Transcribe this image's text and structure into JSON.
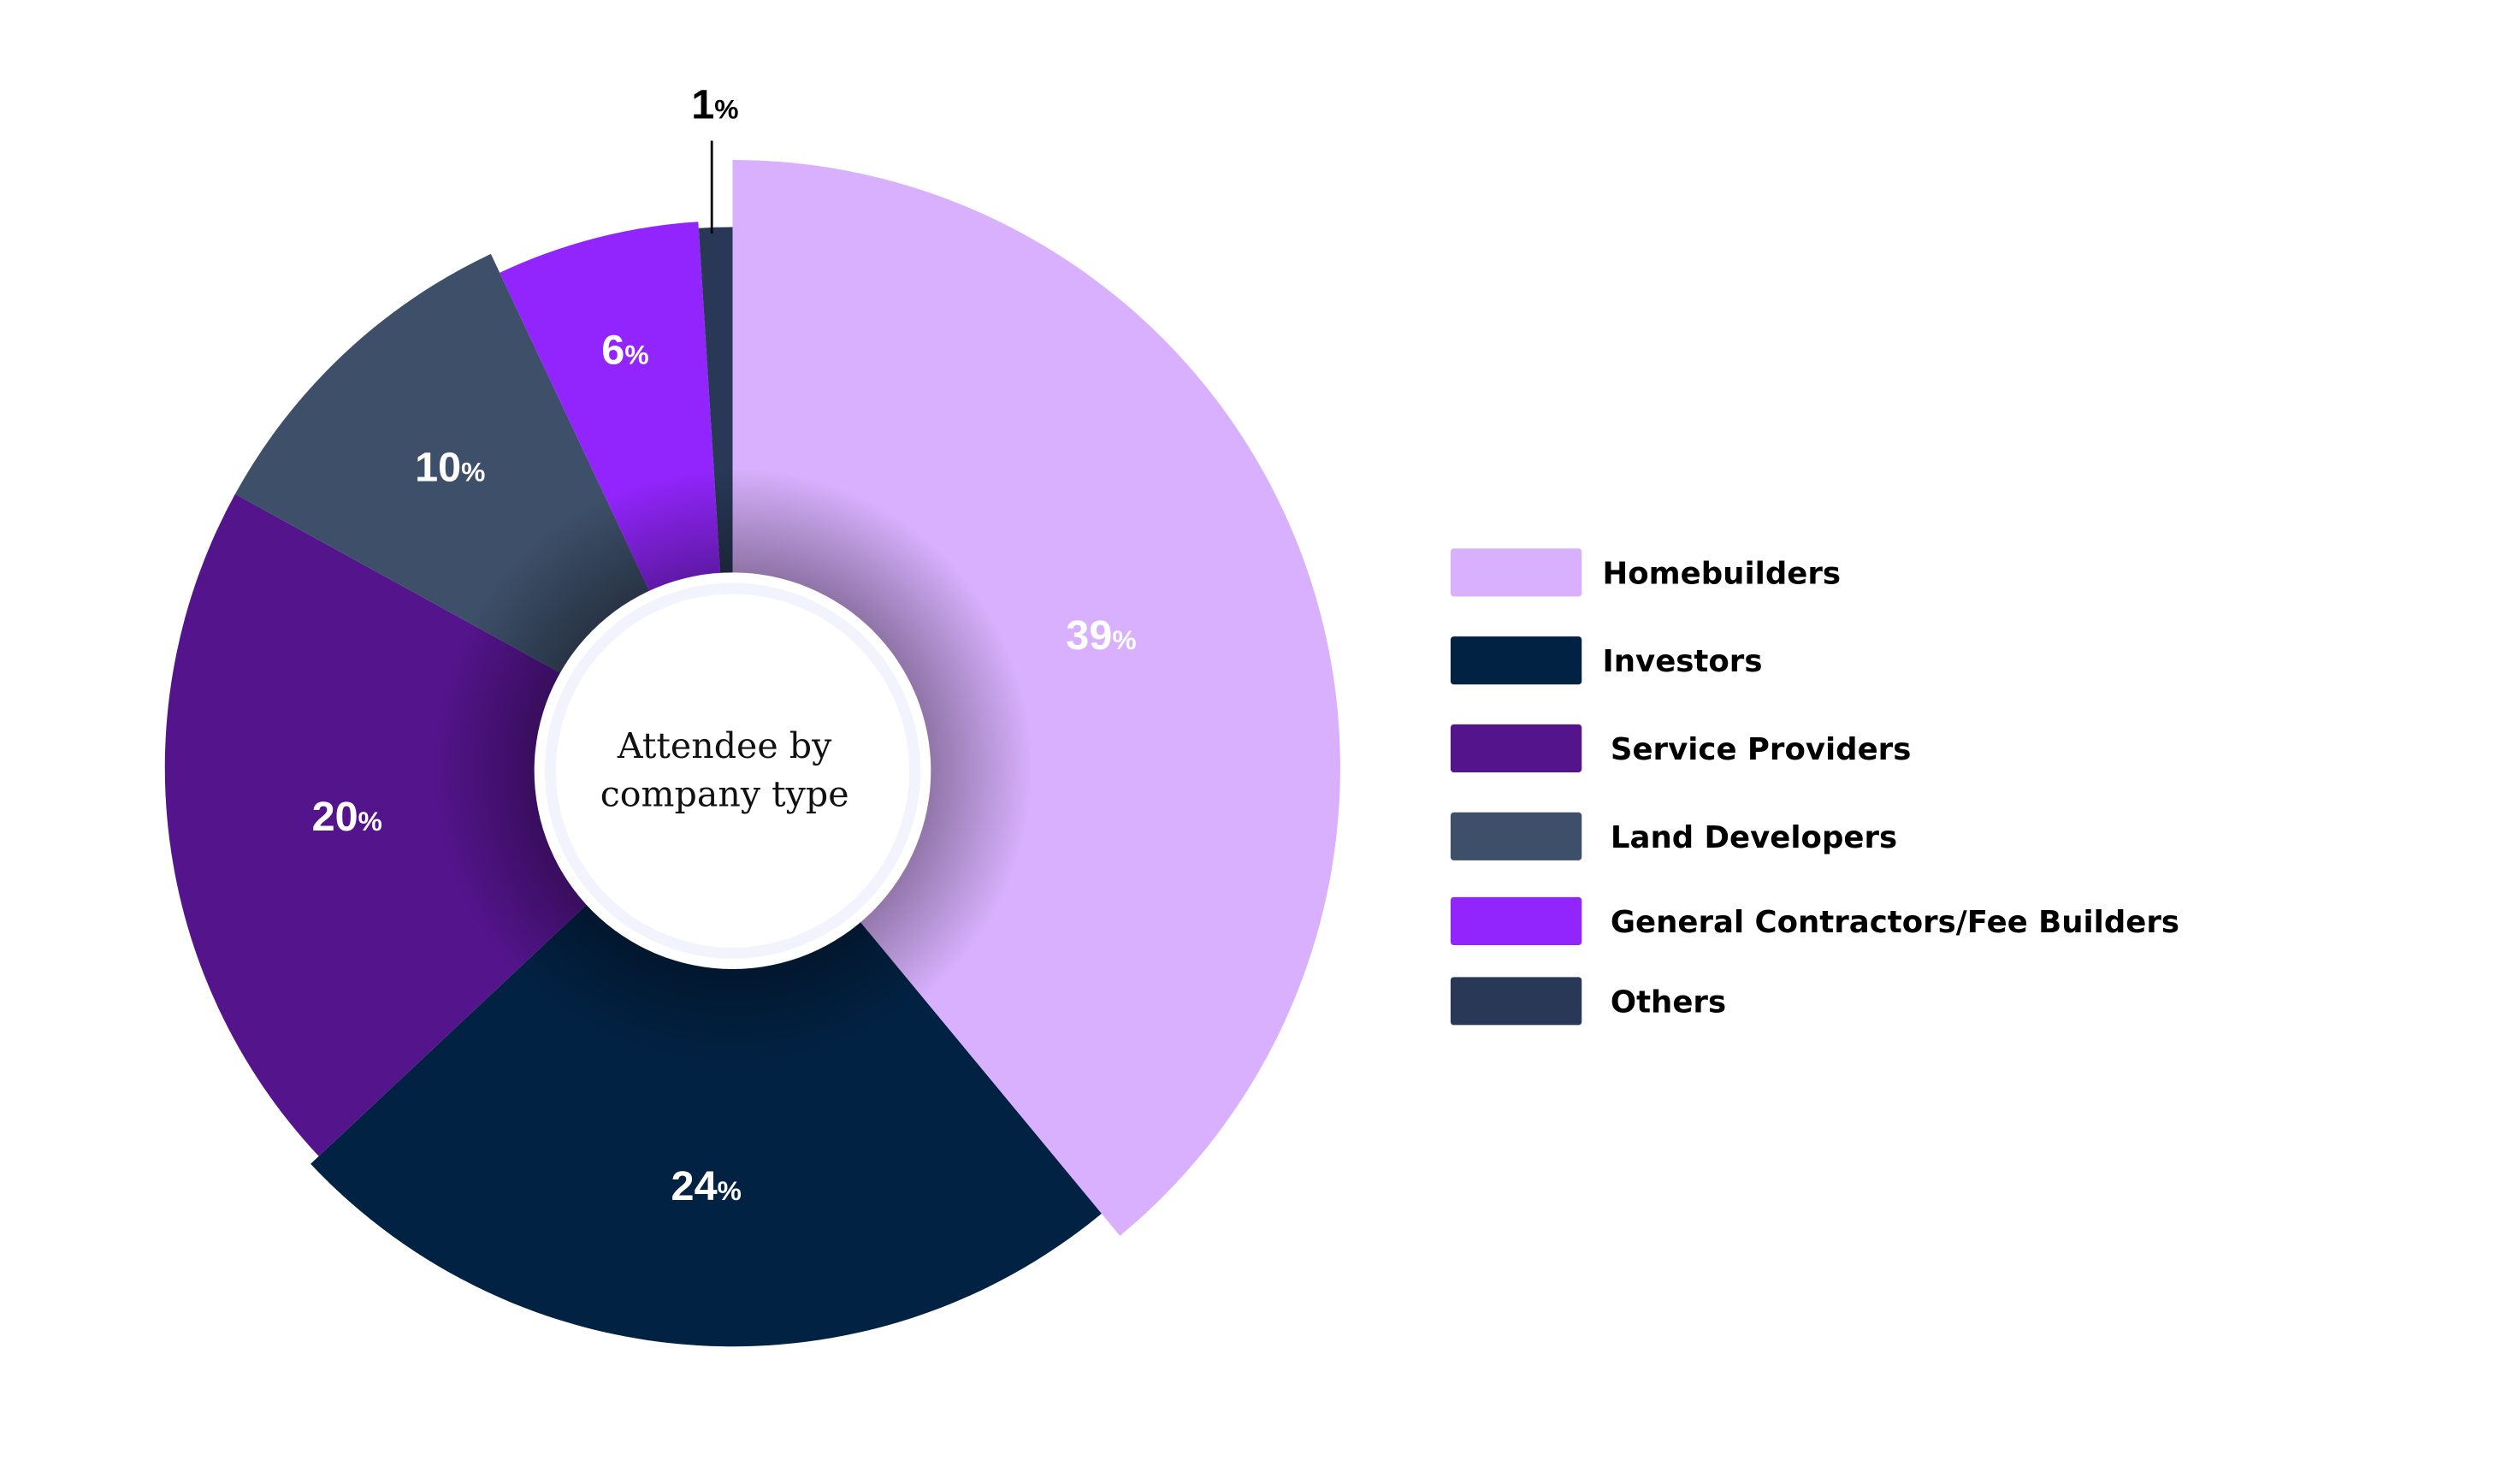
{
  "chart_data": {
    "type": "pie",
    "variant": "donut",
    "title": "Attendee by company type",
    "title_lines": [
      "Attendee by",
      "company type"
    ],
    "unit": "%",
    "legend_placement": "right",
    "slices": [
      {
        "name": "Homebuilders",
        "value": 39,
        "label": "39",
        "color": "#d8b0fd"
      },
      {
        "name": "Investors",
        "value": 24,
        "label": "24",
        "color": "#022244"
      },
      {
        "name": "Service Providers",
        "value": 20,
        "label": "20",
        "color": "#54148c"
      },
      {
        "name": "Land Developers",
        "value": 10,
        "label": "10",
        "color": "#3d4f69"
      },
      {
        "name": "General Contractors/Fee Builders",
        "value": 6,
        "label": "6",
        "color": "#9225fd"
      },
      {
        "name": "Others",
        "value": 1,
        "label": "1",
        "color": "#283856"
      }
    ]
  }
}
